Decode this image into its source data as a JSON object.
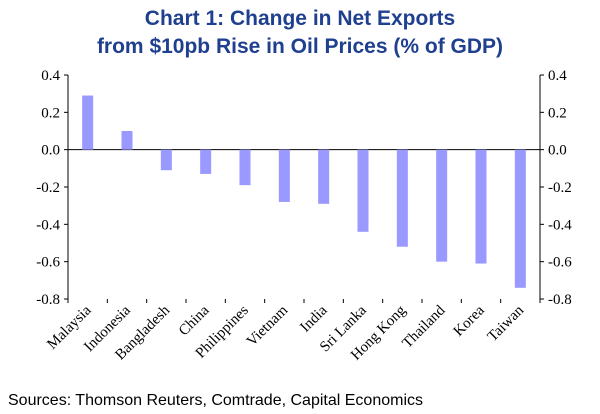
{
  "chart_data": {
    "type": "bar",
    "title_lines": [
      "Chart 1: Change in Net Exports",
      "from $10pb Rise in Oil Prices (% of GDP)"
    ],
    "categories": [
      "Malaysia",
      "Indonesia",
      "Bangladesh",
      "China",
      "Philippines",
      "Vietnam",
      "India",
      "Sri Lanka",
      "Hong Kong",
      "Thailand",
      "Korea",
      "Taiwan"
    ],
    "values": [
      0.29,
      0.1,
      -0.11,
      -0.13,
      -0.19,
      -0.28,
      -0.29,
      -0.44,
      -0.52,
      -0.6,
      -0.61,
      -0.74
    ],
    "ylim": [
      -0.8,
      0.4
    ],
    "yticks": [
      "0.4",
      "0.2",
      "0.0",
      "-0.2",
      "-0.4",
      "-0.6",
      "-0.8"
    ],
    "ytick_values": [
      0.4,
      0.2,
      0.0,
      -0.2,
      -0.4,
      -0.6,
      -0.8
    ],
    "right_axis": true,
    "bar_color": "#9999ff",
    "title_color": "#1f3f8f",
    "grid": false,
    "source": "Sources: Thomson Reuters, Comtrade, Capital Economics"
  }
}
